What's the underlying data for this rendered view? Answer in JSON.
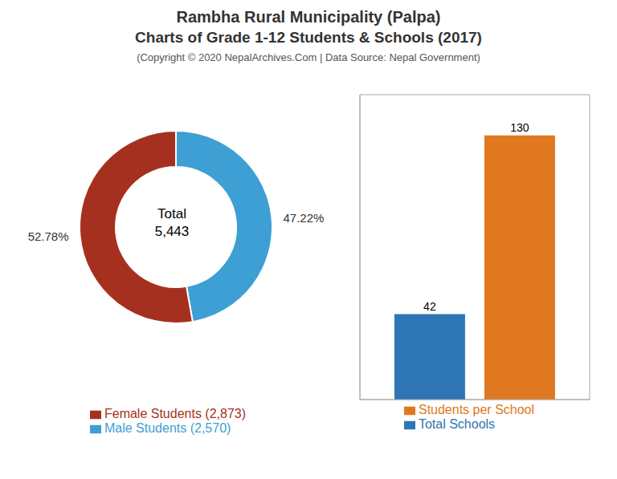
{
  "chart_data": [
    {
      "type": "pie",
      "title": "Rambha Rural Municipality (Palpa)",
      "subtitle": "Charts of Grade 1-12 Students & Schools (2017)",
      "annotations": [
        "(Copyright © 2020 NepalArchives.Com | Data Source: Nepal Government)",
        "Total",
        "5,443"
      ],
      "categories": [
        "Male Students (2,570)",
        "Female Students (2,873)"
      ],
      "values": [
        47.22,
        52.78
      ],
      "value_labels": [
        "47.22%",
        "52.78%"
      ],
      "colors": [
        "#3d9fd3",
        "#a63020"
      ],
      "data_labels": true,
      "legend": "bottom"
    },
    {
      "type": "bar",
      "categories": [
        "Total Schools",
        "Students per School"
      ],
      "values": [
        42,
        130
      ],
      "colors": [
        "#2e75b6",
        "#e07820"
      ],
      "ylim": [
        0,
        150
      ],
      "tick_labels": false,
      "data_labels": true,
      "legend": "bottom"
    }
  ]
}
